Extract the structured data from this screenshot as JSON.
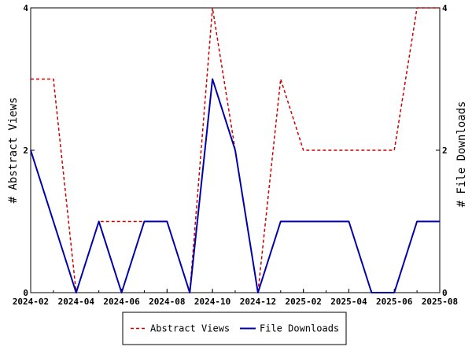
{
  "chart_data": {
    "type": "line",
    "title": "",
    "xlabel": "",
    "ylabel_left": "# Abstract Views",
    "ylabel_right": "# File Downloads",
    "x_ticks": [
      "2024-02",
      "2024-04",
      "2024-06",
      "2024-08",
      "2024-10",
      "2024-12",
      "2025-02",
      "2025-04",
      "2025-06",
      "2025-08"
    ],
    "y_ticks_left": [
      "0",
      "2",
      "4"
    ],
    "y_ticks_right": [
      "0",
      "2",
      "4"
    ],
    "ylim": [
      0,
      4
    ],
    "xlim": [
      "2024-02",
      "2025-08"
    ],
    "grid": false,
    "legend_position": "bottom",
    "x": [
      "2024-02",
      "2024-03",
      "2024-04",
      "2024-05",
      "2024-06",
      "2024-07",
      "2024-08",
      "2024-09",
      "2024-10",
      "2024-11",
      "2024-12",
      "2025-01",
      "2025-02",
      "2025-03",
      "2025-04",
      "2025-05",
      "2025-06",
      "2025-07",
      "2025-08"
    ],
    "series": [
      {
        "name": "Abstract Views",
        "axis": "left",
        "color": "#cc0000",
        "dash": "dashed",
        "values": [
          3,
          3,
          0,
          1,
          1,
          1,
          1,
          0,
          4,
          2,
          0,
          3,
          2,
          2,
          2,
          2,
          2,
          4,
          4
        ]
      },
      {
        "name": "File Downloads",
        "axis": "right",
        "color": "#0000aa",
        "dash": "solid",
        "values": [
          2,
          1,
          0,
          1,
          0,
          1,
          1,
          0,
          3,
          2,
          0,
          1,
          1,
          1,
          1,
          0,
          0,
          1,
          1
        ]
      }
    ]
  }
}
